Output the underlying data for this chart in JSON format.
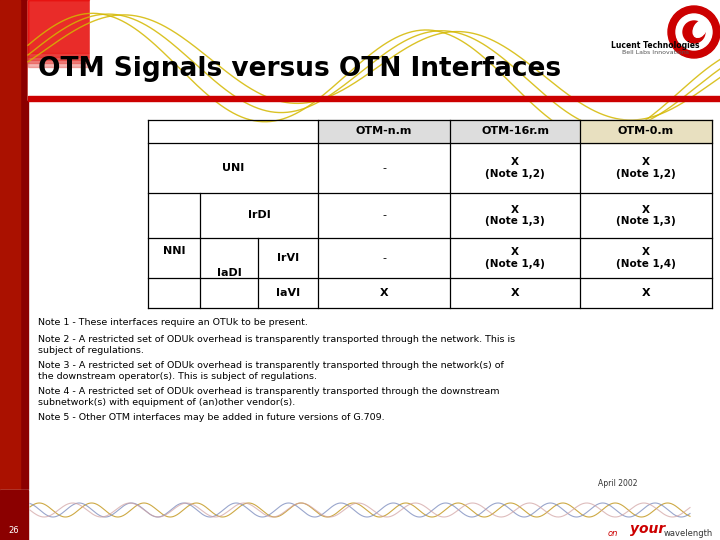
{
  "title": "OTM Signals versus OTN Interfaces",
  "notes": [
    "Note 1 - These interfaces require an OTUk to be present.",
    "Note 2 - A restricted set of ODUk overhead is transparently transported through the network. This is\nsubject of regulations.",
    "Note 3 - A restricted set of ODUk overhead is transparently transported through the network(s) of\nthe downstream operator(s). This is subject of regulations.",
    "Note 4 - A restricted set of ODUk overhead is transparently transported through the downstream\nsubnetwork(s) with equipment of (an)other vendor(s).",
    "Note 5 - Other OTM interfaces may be added in future versions of G.709."
  ],
  "footer_text": "April 2002",
  "slide_number": "26",
  "col_headers": [
    "OTM-n.m",
    "OTM-16r.m",
    "OTM-0.m"
  ],
  "left_red": "#CC2200",
  "red_bar": "#CC0000",
  "header_gray": "#D8D8D8",
  "wave_gold": "#C8A030",
  "wave_blue": "#8090C0",
  "wave_red": "#CC3300"
}
